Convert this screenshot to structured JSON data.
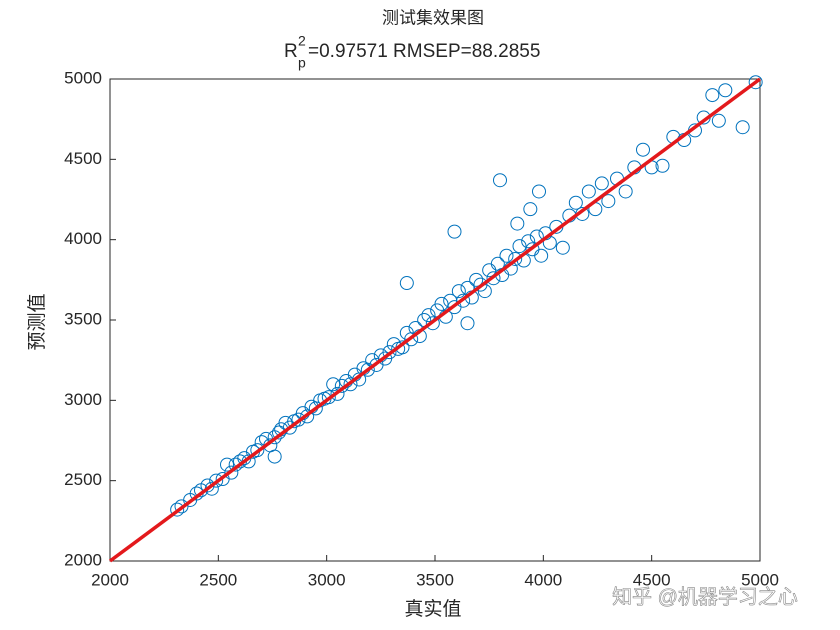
{
  "chart_data": {
    "type": "scatter",
    "title": "测试集效果图",
    "subtitle": {
      "base": "R",
      "sup": "2",
      "sub": "p",
      "rest": "=0.97571  RMSEP=88.2855"
    },
    "x_label": "真实值",
    "y_label": "预测值",
    "watermark": "知乎 @机器学习之心",
    "xlim": [
      2000,
      5000
    ],
    "ylim": [
      2000,
      5000
    ],
    "xticks": [
      2000,
      2500,
      3000,
      3500,
      4000,
      4500,
      5000
    ],
    "yticks": [
      2000,
      2500,
      3000,
      3500,
      4000,
      4500,
      5000
    ],
    "series": [
      {
        "color": "#0072bd",
        "x": [
          2310,
          2330,
          2370,
          2400,
          2420,
          2450,
          2470,
          2490,
          2520,
          2540,
          2560,
          2580,
          2600,
          2620,
          2640,
          2660,
          2680,
          2700,
          2720,
          2740,
          2760,
          2780,
          2790,
          2810,
          2830,
          2850,
          2870,
          2890,
          2910,
          2930,
          2950,
          2970,
          2990,
          3010,
          3030,
          3050,
          3070,
          3090,
          3110,
          3130,
          3150,
          3170,
          3190,
          3210,
          3230,
          3250,
          3270,
          3290,
          3310,
          3330,
          3350,
          3370,
          3390,
          3410,
          3430,
          3450,
          3470,
          3490,
          3510,
          3530,
          3550,
          3570,
          3590,
          3610,
          3630,
          3650,
          3670,
          3690,
          3710,
          3730,
          3750,
          3770,
          3790,
          3810,
          3830,
          3850,
          3870,
          3890,
          3910,
          3930,
          3950,
          3970,
          3990,
          4010,
          4030,
          4060,
          4090,
          4120,
          4150,
          4180,
          4210,
          4240,
          4270,
          4300,
          4340,
          4380,
          4420,
          4460,
          4500,
          4550,
          4600,
          4650,
          4700,
          4740,
          4780,
          4810,
          4840,
          4920,
          4980,
          3590,
          3800,
          3940,
          2760,
          3650,
          3370,
          3980,
          3880
        ],
        "values": [
          2320,
          2340,
          2380,
          2420,
          2440,
          2470,
          2450,
          2500,
          2510,
          2600,
          2550,
          2600,
          2620,
          2640,
          2620,
          2680,
          2690,
          2740,
          2760,
          2720,
          2770,
          2800,
          2820,
          2860,
          2830,
          2870,
          2880,
          2920,
          2900,
          2960,
          2950,
          3000,
          3010,
          3020,
          3100,
          3040,
          3090,
          3120,
          3100,
          3160,
          3130,
          3200,
          3190,
          3250,
          3220,
          3280,
          3260,
          3300,
          3350,
          3320,
          3330,
          3420,
          3380,
          3450,
          3400,
          3500,
          3530,
          3480,
          3560,
          3600,
          3520,
          3620,
          3580,
          3680,
          3620,
          3700,
          3640,
          3750,
          3720,
          3680,
          3810,
          3760,
          3850,
          3780,
          3900,
          3820,
          3880,
          3960,
          3870,
          3990,
          3940,
          4020,
          3900,
          4040,
          3980,
          4080,
          3950,
          4150,
          4230,
          4160,
          4300,
          4190,
          4350,
          4240,
          4380,
          4300,
          4450,
          4560,
          4450,
          4460,
          4640,
          4620,
          4680,
          4760,
          4900,
          4740,
          4930,
          4700,
          4980,
          4050,
          4370,
          4190,
          2650,
          3480,
          3730,
          4300,
          4100
        ]
      }
    ],
    "reference_line": {
      "color": "#e3191c",
      "x": [
        2000,
        5000
      ],
      "values": [
        2000,
        5000
      ]
    }
  }
}
